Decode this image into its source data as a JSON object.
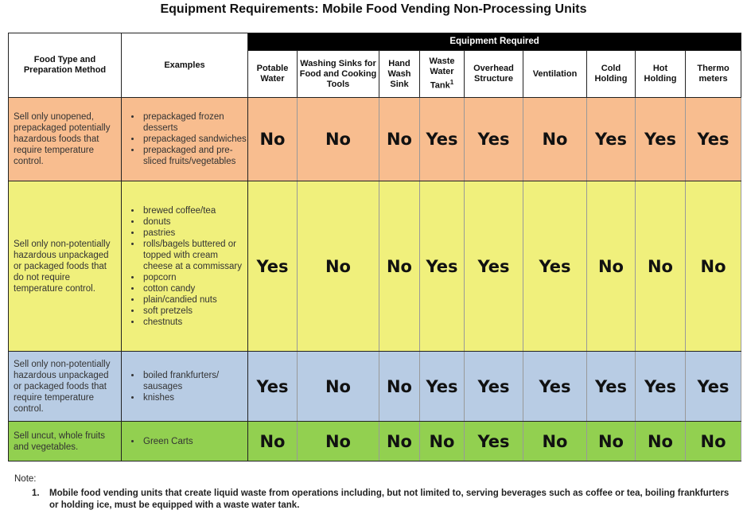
{
  "title": "Equipment Requirements: Mobile Food Vending Non-Processing Units",
  "header": {
    "food_type": "Food Type and Preparation Method",
    "examples": "Examples",
    "equipment_required": "Equipment Required",
    "columns": [
      "Potable Water",
      "Washing Sinks for Food and Cooking Tools",
      "Hand Wash Sink",
      "Waste Water Tank",
      "Overhead Structure",
      "Ventilation",
      "Cold Holding",
      "Hot Holding",
      "Thermo meters"
    ],
    "waste_water_footnote": "1"
  },
  "colors": {
    "orange": "#f8bd8f",
    "yellow": "#f0f07c",
    "blue": "#b8cce4",
    "green": "#92d050"
  },
  "rows": [
    {
      "food": "Sell only unopened, prepackaged potentially hazardous foods that require temperature control.",
      "color": "#f8bd8f",
      "examples": [
        "prepackaged frozen desserts",
        "prepackaged sandwiches",
        "prepackaged and pre-sliced fruits/vegetables"
      ],
      "values": [
        "No",
        "No",
        "No",
        "Yes",
        "Yes",
        "No",
        "Yes",
        "Yes",
        "Yes"
      ]
    },
    {
      "food": "Sell only non-potentially hazardous unpackaged or packaged foods that do not require temperature control.",
      "color": "#f0f07c",
      "examples": [
        "brewed coffee/tea",
        "donuts",
        "pastries",
        "rolls/bagels buttered or topped with cream cheese at a commissary",
        "popcorn",
        "cotton candy",
        "plain/candied nuts",
        "soft pretzels",
        "chestnuts"
      ],
      "values": [
        "Yes",
        "No",
        "No",
        "Yes",
        "Yes",
        "Yes",
        "No",
        "No",
        "No"
      ]
    },
    {
      "food": "Sell only non-potentially hazardous unpackaged or packaged foods that require temperature control.",
      "color": "#b8cce4",
      "examples": [
        "boiled frankfurters/ sausages",
        "knishes"
      ],
      "values": [
        "Yes",
        "No",
        "No",
        "Yes",
        "Yes",
        "Yes",
        "Yes",
        "Yes",
        "Yes"
      ]
    },
    {
      "food": "Sell uncut, whole fruits and vegetables.",
      "color": "#92d050",
      "examples": [
        "Green Carts"
      ],
      "values": [
        "No",
        "No",
        "No",
        "No",
        "Yes",
        "No",
        "No",
        "No",
        "No"
      ]
    }
  ],
  "note": {
    "label": "Note:",
    "items": [
      {
        "num": "1.",
        "text": "Mobile food vending units that create liquid waste from operations including, but not limited to, serving beverages such as coffee or tea, boiling frankfurters or holding ice, must be equipped with a waste water tank."
      }
    ]
  }
}
